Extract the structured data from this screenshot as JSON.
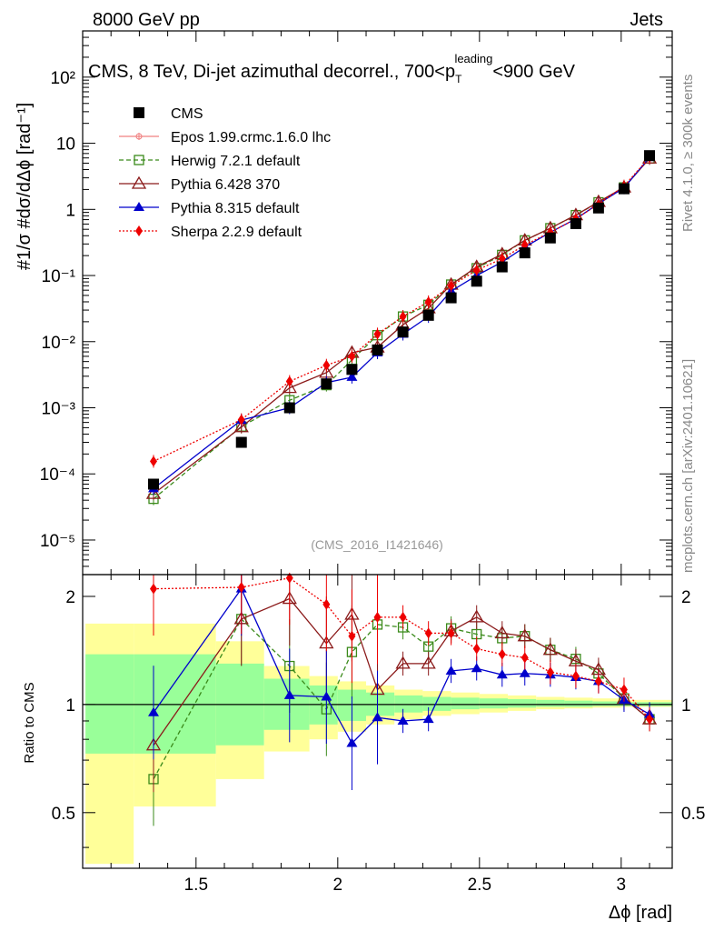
{
  "header": {
    "energy_label": "8000 GeV pp",
    "process_label": "Jets",
    "title_main": "CMS, 8 TeV, Di-jet azimuthal decorrel., 700<p",
    "title_sup": "leading",
    "title_sub": "T",
    "title_tail": "<900 GeV",
    "analysis_id": "(CMS_2016_I1421646)",
    "rivet_label": "Rivet 4.1.0, ≥ 300k events",
    "mcplots_label": "mcplots.cern.ch [arXiv:2401.10621]"
  },
  "axes": {
    "ylabel_main": "#1/σ #dσ/dΔϕ [rad⁻¹]",
    "ylabel_ratio": "Ratio to CMS",
    "xlabel": "Δϕ [rad]",
    "x_ticks": [
      "1.5",
      "2",
      "2.5",
      "3"
    ],
    "y_main_ticks": [
      "10⁻⁵",
      "10⁻⁴",
      "10⁻³",
      "10⁻²",
      "10⁻¹",
      "1",
      "10",
      "10²"
    ],
    "y_ratio_ticks": [
      "0.5",
      "1",
      "2"
    ]
  },
  "legend": {
    "entries": [
      {
        "key": "cms",
        "label": "CMS"
      },
      {
        "key": "epos",
        "label": "Epos 1.99.crmc.1.6.0 lhc"
      },
      {
        "key": "herwig",
        "label": "Herwig 7.2.1 default"
      },
      {
        "key": "py6",
        "label": "Pythia 6.428 370"
      },
      {
        "key": "py8",
        "label": "Pythia 8.315 default"
      },
      {
        "key": "sherpa",
        "label": "Sherpa 2.2.9 default"
      }
    ]
  },
  "colors": {
    "cms": "#000000",
    "epos": "#f08080",
    "herwig": "#3a8a1a",
    "py6": "#8b1a1a",
    "py8": "#0000cc",
    "sherpa": "#ee0000",
    "band_inner": "#99ff99",
    "band_outer": "#ffff99"
  },
  "chart_data": {
    "type": "line",
    "title": "CMS, 8 TeV, Di-jet azimuthal decorrel., 700<pT leading<900 GeV",
    "xlabel": "Δϕ [rad]",
    "ylabel": "1/σ dσ/dΔϕ [rad^-1]",
    "xlim": [
      1.1,
      3.18
    ],
    "ylim_main": [
      3e-06,
      500
    ],
    "y_scale_main": "log",
    "ylim_ratio": [
      0.35,
      2.3
    ],
    "y_scale_ratio": "log",
    "x": [
      1.35,
      1.66,
      1.83,
      1.96,
      2.05,
      2.14,
      2.23,
      2.32,
      2.4,
      2.49,
      2.58,
      2.66,
      2.75,
      2.84,
      2.92,
      3.01,
      3.1
    ],
    "series": [
      {
        "key": "cms",
        "name": "CMS",
        "values": [
          7e-05,
          0.0003,
          0.001,
          0.0023,
          0.0038,
          0.0075,
          0.014,
          0.025,
          0.046,
          0.082,
          0.135,
          0.22,
          0.37,
          0.61,
          1.05,
          2.05,
          6.5
        ]
      },
      {
        "key": "herwig",
        "name": "Herwig 7.2.1 default",
        "values": [
          4.2e-05,
          0.00052,
          0.0013,
          0.0022,
          0.0053,
          0.0125,
          0.024,
          0.036,
          0.073,
          0.129,
          0.205,
          0.34,
          0.52,
          0.82,
          1.28,
          2.15,
          5.9
        ],
        "ratio": [
          0.62,
          1.73,
          1.28,
          0.97,
          1.4,
          1.67,
          1.64,
          1.45,
          1.63,
          1.57,
          1.53,
          1.55,
          1.42,
          1.34,
          1.22,
          1.04,
          0.91
        ]
      },
      {
        "key": "py6",
        "name": "Pythia 6.428 370",
        "values": [
          5e-05,
          0.00051,
          0.002,
          0.0034,
          0.0068,
          0.0082,
          0.018,
          0.032,
          0.073,
          0.135,
          0.21,
          0.34,
          0.52,
          0.82,
          1.3,
          2.15,
          5.9
        ],
        "ratio": [
          0.77,
          1.73,
          1.97,
          1.48,
          1.78,
          1.1,
          1.3,
          1.3,
          1.6,
          1.75,
          1.58,
          1.55,
          1.42,
          1.32,
          1.25,
          1.04,
          0.91
        ]
      },
      {
        "key": "py8",
        "name": "Pythia 8.315 default",
        "values": [
          6e-05,
          0.00065,
          0.001,
          0.0024,
          0.0029,
          0.0068,
          0.013,
          0.024,
          0.058,
          0.1,
          0.16,
          0.27,
          0.45,
          0.72,
          1.22,
          2.12,
          6.1
        ],
        "ratio": [
          0.95,
          2.1,
          1.06,
          1.05,
          0.78,
          0.92,
          0.9,
          0.91,
          1.24,
          1.26,
          1.21,
          1.22,
          1.21,
          1.19,
          1.16,
          1.03,
          0.94
        ]
      },
      {
        "key": "sherpa",
        "name": "Sherpa 2.2.9 default",
        "values": [
          0.000155,
          0.00066,
          0.0025,
          0.0044,
          0.006,
          0.013,
          0.024,
          0.04,
          0.07,
          0.12,
          0.18,
          0.29,
          0.45,
          0.72,
          1.2,
          2.25,
          6.1
        ],
        "ratio": [
          2.1,
          2.12,
          2.25,
          1.9,
          1.55,
          1.75,
          1.75,
          1.58,
          1.58,
          1.43,
          1.38,
          1.35,
          1.23,
          1.2,
          1.16,
          1.1,
          0.91
        ]
      }
    ],
    "ratio_band": {
      "edges": [
        1.11,
        1.28,
        1.57,
        1.74,
        1.9,
        2.0,
        2.1,
        2.2,
        2.3,
        2.4,
        2.5,
        2.6,
        2.7,
        2.8,
        2.9,
        3.0,
        3.1,
        3.18
      ],
      "inner_low": [
        0.73,
        0.73,
        0.77,
        0.85,
        0.88,
        0.9,
        0.93,
        0.95,
        0.96,
        0.97,
        0.975,
        0.98,
        0.985,
        0.985,
        0.99,
        0.99,
        0.99
      ],
      "inner_high": [
        1.38,
        1.38,
        1.3,
        1.18,
        1.13,
        1.1,
        1.08,
        1.06,
        1.05,
        1.045,
        1.04,
        1.035,
        1.03,
        1.025,
        1.02,
        1.015,
        1.015
      ],
      "outer_low": [
        0.36,
        0.52,
        0.62,
        0.74,
        0.8,
        0.84,
        0.88,
        0.91,
        0.93,
        0.94,
        0.95,
        0.96,
        0.97,
        0.975,
        0.98,
        0.985,
        0.985
      ],
      "outer_high": [
        1.68,
        1.68,
        1.5,
        1.28,
        1.2,
        1.16,
        1.13,
        1.1,
        1.09,
        1.08,
        1.07,
        1.06,
        1.05,
        1.045,
        1.04,
        1.03,
        1.03
      ]
    }
  }
}
